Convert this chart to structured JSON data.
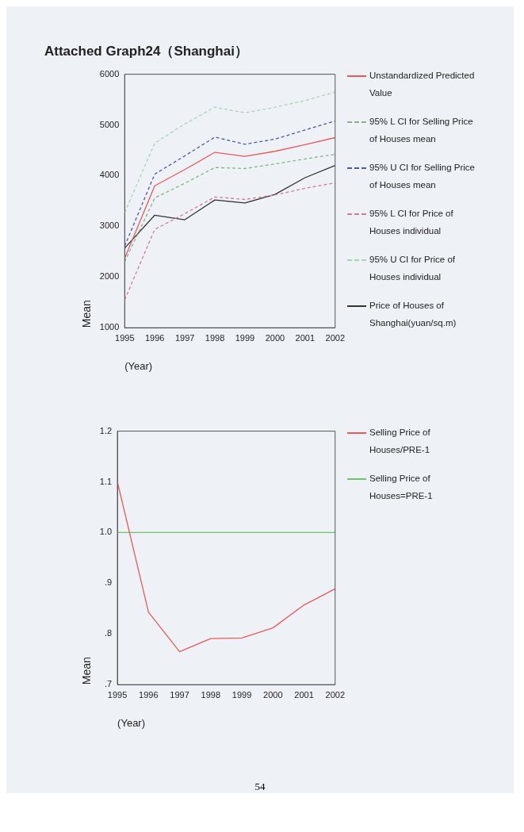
{
  "chart_data": [
    {
      "type": "line",
      "title": "Attached Graph24（Shanghai）",
      "xlabel": "(Year)",
      "ylabel": "Mean",
      "categories": [
        "1995",
        "1996",
        "1997",
        "1998",
        "1999",
        "2000",
        "2001",
        "2002"
      ],
      "series": [
        {
          "name": "Unstandardized Predicted Value",
          "color": "#e85a5a",
          "line_style": "solid",
          "values": [
            2370,
            3800,
            4120,
            4460,
            4380,
            4480,
            4610,
            4750
          ]
        },
        {
          "name": "95% L CI for Selling Price of Houses mean",
          "color": "#86b486",
          "line_style": "dashed",
          "values": [
            2300,
            3560,
            3850,
            4160,
            4140,
            4230,
            4330,
            4420
          ]
        },
        {
          "name": "95% U CI for Selling Price of Houses mean",
          "color": "#4a5aa8",
          "line_style": "dashed",
          "values": [
            2610,
            4030,
            4390,
            4760,
            4620,
            4720,
            4900,
            5080
          ]
        },
        {
          "name": "95% L CI for Price of Houses individual",
          "color": "#d27a98",
          "line_style": "dashed",
          "values": [
            1550,
            2940,
            3250,
            3580,
            3530,
            3620,
            3750,
            3860
          ]
        },
        {
          "name": "95% U CI for Price of Houses individual",
          "color": "#a6d6b2",
          "line_style": "dashed",
          "values": [
            3270,
            4640,
            5020,
            5350,
            5240,
            5350,
            5480,
            5650
          ]
        },
        {
          "name": "Price of Houses of Shanghai(yuan/sq.m)",
          "color": "#333333",
          "line_style": "solid",
          "values": [
            2570,
            3220,
            3130,
            3520,
            3460,
            3630,
            3960,
            4200
          ]
        }
      ],
      "ylim": [
        1000,
        6000
      ],
      "yticks": [
        1000,
        2000,
        3000,
        4000,
        5000,
        6000
      ],
      "grid": false,
      "legend": "right",
      "marker": "none"
    },
    {
      "type": "line",
      "xlabel": "(Year)",
      "ylabel": "Mean",
      "categories": [
        "1995",
        "1996",
        "1997",
        "1998",
        "1999",
        "2000",
        "2001",
        "2002"
      ],
      "series": [
        {
          "name": "Selling Price of Houses/PRE-1",
          "color": "#e85a5a",
          "line_style": "solid",
          "values": [
            1.1,
            0.843,
            0.765,
            0.791,
            0.792,
            0.812,
            0.857,
            0.889
          ]
        },
        {
          "name": "Selling Price of Houses=PRE-1",
          "color": "#6cc46c",
          "line_style": "solid",
          "values": [
            1.0,
            1.0,
            1.0,
            1.0,
            1.0,
            1.0,
            1.0,
            1.0
          ]
        }
      ],
      "ylim": [
        0.7,
        1.2
      ],
      "yticks": [
        {
          "value": 0.7,
          "label": ".7"
        },
        {
          "value": 0.8,
          "label": ".8"
        },
        {
          "value": 0.9,
          "label": ".9"
        },
        {
          "value": 1.0,
          "label": "1.0"
        },
        1.1,
        1.2
      ],
      "grid": false,
      "legend": "right",
      "marker": "none",
      "annotations": [
        "54"
      ]
    }
  ]
}
